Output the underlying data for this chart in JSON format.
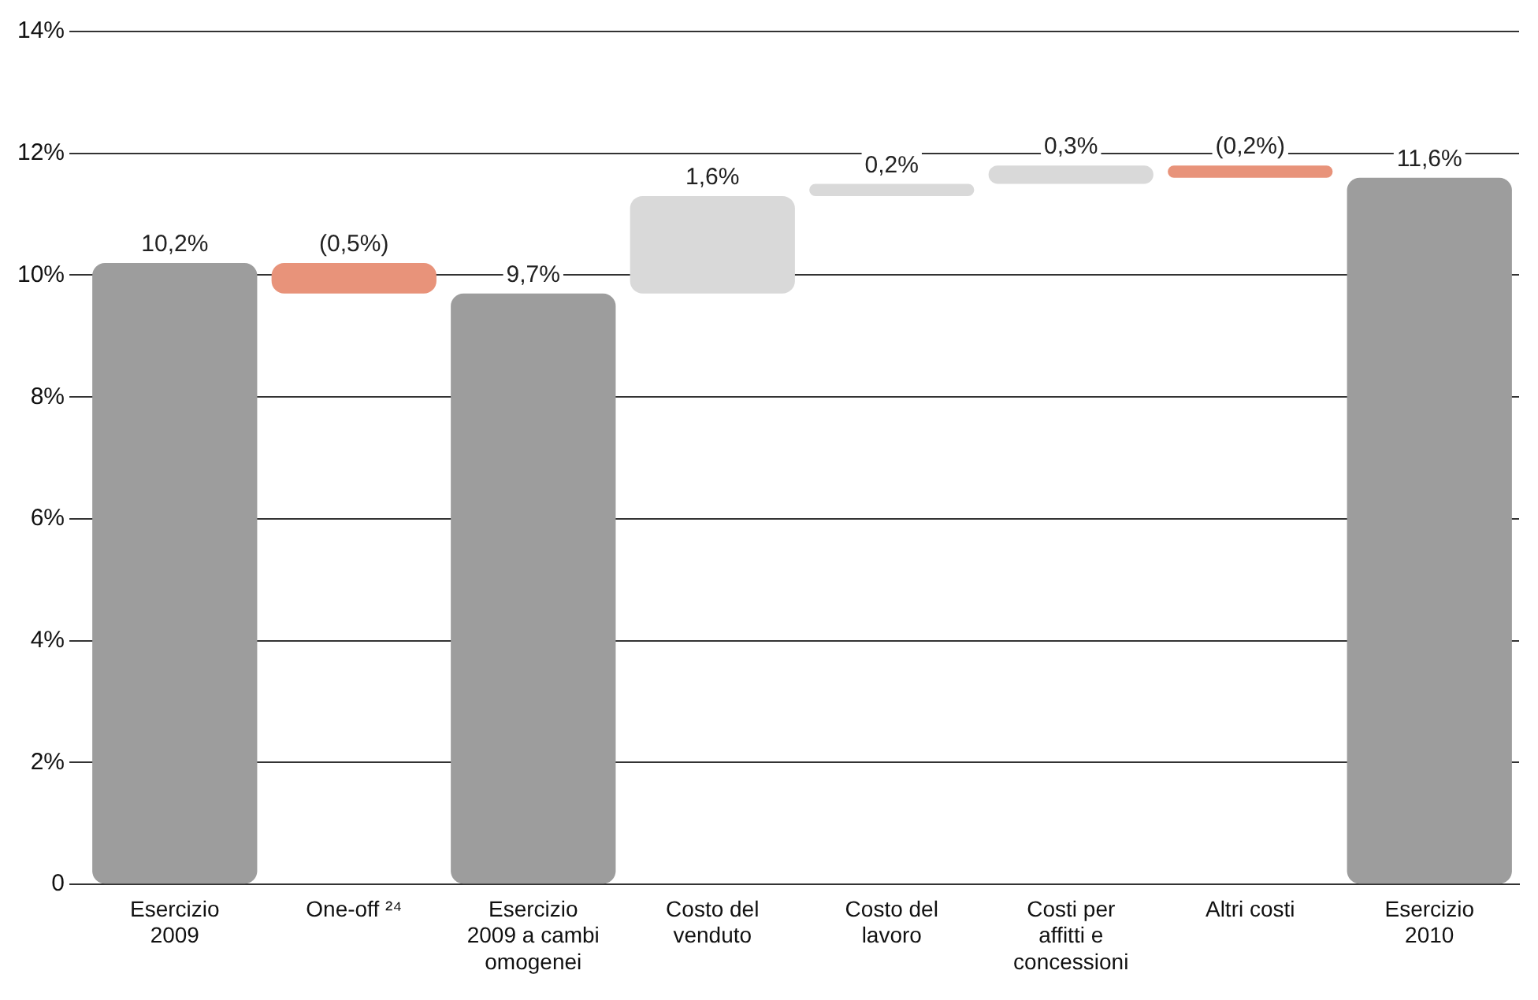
{
  "chart_data": {
    "type": "bar",
    "categories": [
      "Esercizio 2009",
      "One-off ²⁴",
      "Esercizio 2009 a cambi omogenei",
      "Costo del venduto",
      "Costo del lavoro",
      "Costi per affitti e concessioni",
      "Altri costi",
      "Esercizio 2010"
    ],
    "values": [
      10.2,
      -0.5,
      9.7,
      1.6,
      0.2,
      0.3,
      -0.2,
      11.6
    ],
    "base": [
      0,
      10.2,
      0,
      9.7,
      11.3,
      11.5,
      11.8,
      0
    ],
    "colors": [
      "#9d9d9d",
      "#e8937a",
      "#9d9d9d",
      "#d9d9d9",
      "#d9d9d9",
      "#d9d9d9",
      "#e8937a",
      "#9d9d9d"
    ],
    "value_labels": [
      "10,2%",
      "(0,5%)",
      "9,7%",
      "1,6%",
      "0,2%",
      "0,3%",
      "(0,2%)",
      "11,6%"
    ],
    "ylim": [
      0,
      14
    ],
    "yticks": [
      {
        "value": 0,
        "label": "0"
      },
      {
        "value": 2,
        "label": "2%"
      },
      {
        "value": 4,
        "label": "4%"
      },
      {
        "value": 6,
        "label": "6%"
      },
      {
        "value": 8,
        "label": "8%"
      },
      {
        "value": 10,
        "label": "10%"
      },
      {
        "value": 12,
        "label": "12%"
      },
      {
        "value": 14,
        "label": "14%"
      }
    ],
    "grid": "y",
    "legend": false
  }
}
